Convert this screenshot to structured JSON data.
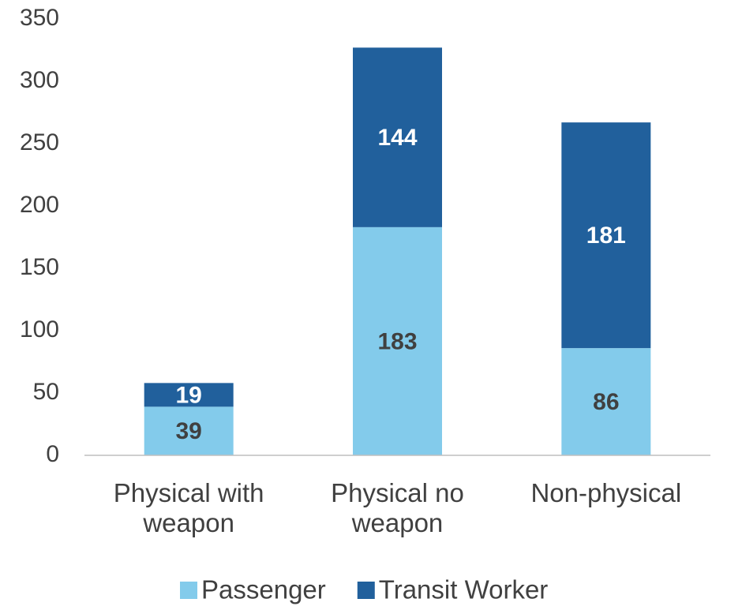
{
  "chart_data": {
    "type": "stacked_bar",
    "categories": [
      "Physical with weapon",
      "Physical no weapon",
      "Non-physical"
    ],
    "series": [
      {
        "name": "Passenger",
        "color": "#83cbeb",
        "values": [
          39,
          183,
          86
        ]
      },
      {
        "name": "Transit Worker",
        "color": "#21609c",
        "values": [
          19,
          144,
          181
        ]
      }
    ],
    "ylim": [
      0,
      350
    ],
    "yticks": [
      0,
      50,
      100,
      150,
      200,
      250,
      300,
      350
    ],
    "legend": "bottom"
  }
}
